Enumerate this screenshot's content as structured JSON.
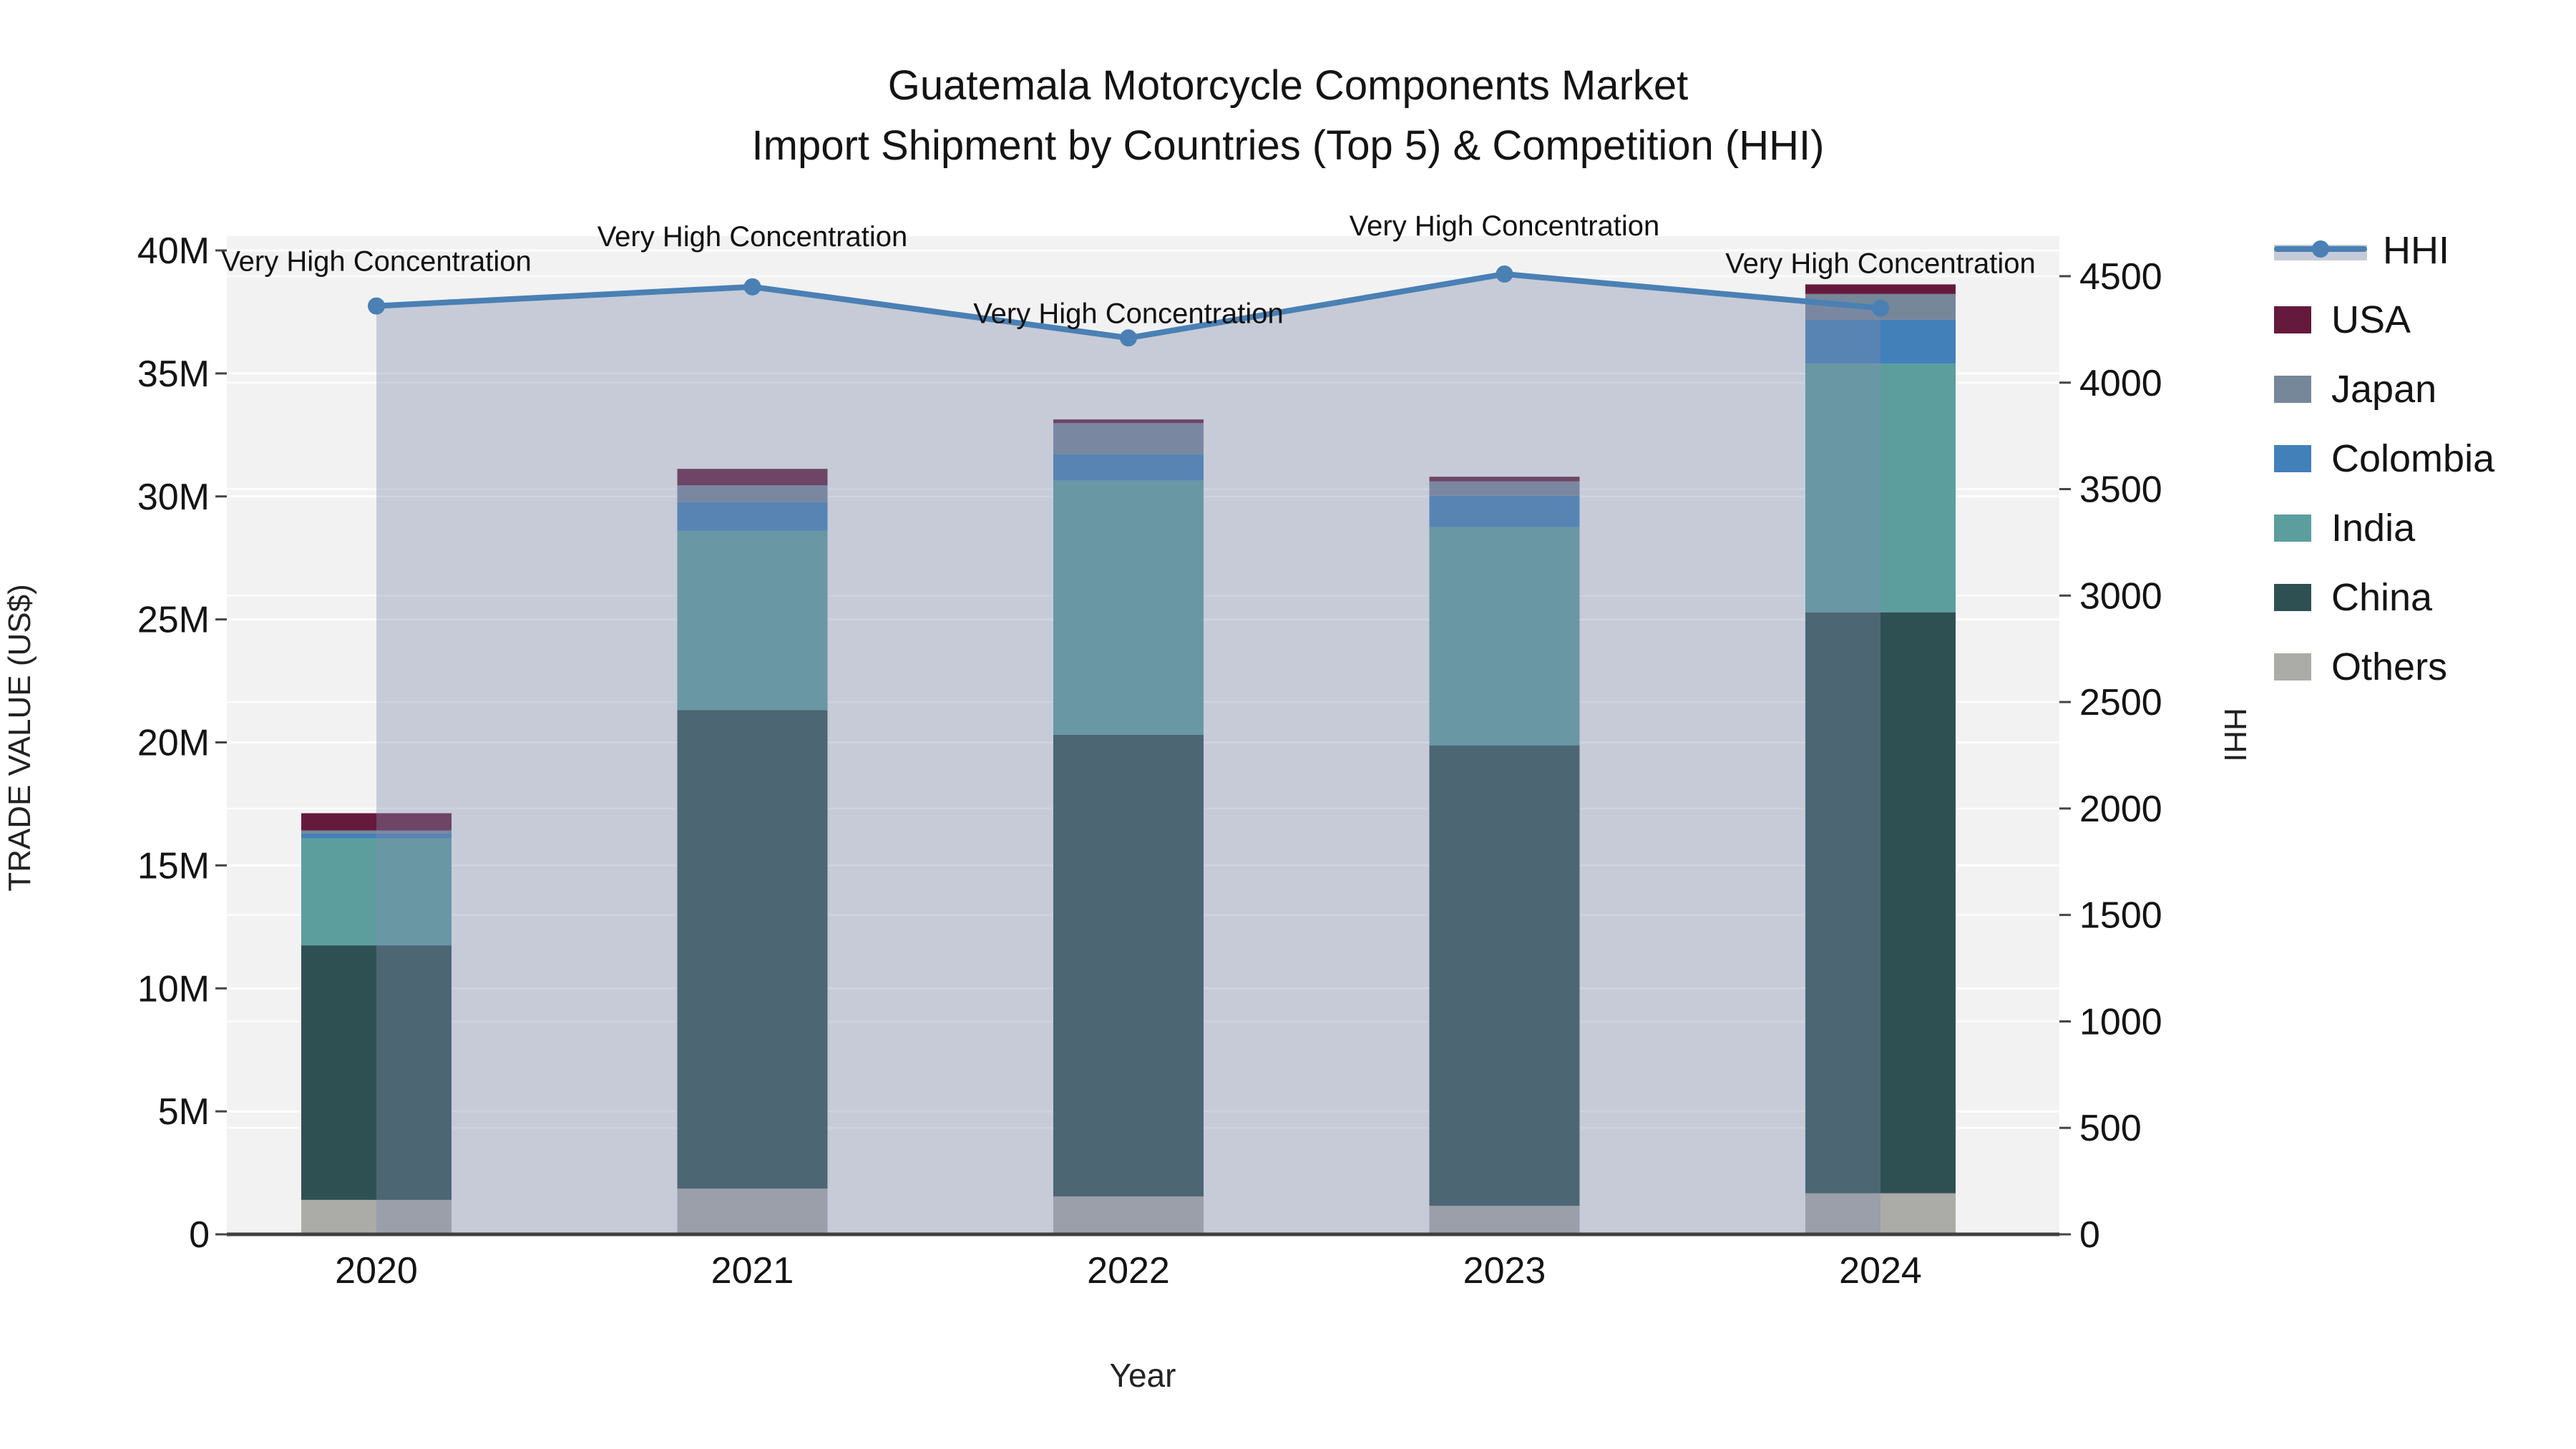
{
  "title": {
    "line1": "Guatemala Motorcycle Components Market",
    "line2": "Import Shipment by Countries (Top 5) & Competition (HHI)"
  },
  "axes": {
    "y_left_title": "TRADE VALUE (US$)",
    "y_right_title": "HHI",
    "x_title": "Year"
  },
  "legend": {
    "items": [
      {
        "label": "HHI",
        "type": "line",
        "color": "#4a80b4"
      },
      {
        "label": "USA",
        "type": "patch",
        "color": "#651a3d"
      },
      {
        "label": "Japan",
        "type": "patch",
        "color": "#76879a"
      },
      {
        "label": "Colombia",
        "type": "patch",
        "color": "#4280ba"
      },
      {
        "label": "India",
        "type": "patch",
        "color": "#5c9e9e"
      },
      {
        "label": "China",
        "type": "patch",
        "color": "#2f5053"
      },
      {
        "label": "Others",
        "type": "patch",
        "color": "#ababa8"
      }
    ]
  },
  "chart_data": {
    "type": "bar",
    "subtype": "stacked-bars-with-line",
    "title": "Guatemala Motorcycle Components Market — Import Shipment by Countries (Top 5) & Competition (HHI)",
    "categories": [
      "2020",
      "2021",
      "2022",
      "2023",
      "2024"
    ],
    "unit": "US$ millions",
    "series": [
      {
        "name": "Others",
        "color": "#ababa8",
        "values": [
          1.4,
          1.86,
          1.54,
          1.16,
          1.67
        ]
      },
      {
        "name": "China",
        "color": "#2f5053",
        "values": [
          10.35,
          19.45,
          18.77,
          18.72,
          23.62
        ]
      },
      {
        "name": "India",
        "color": "#5c9e9e",
        "values": [
          4.35,
          7.3,
          10.34,
          8.87,
          10.11
        ]
      },
      {
        "name": "Colombia",
        "color": "#4280ba",
        "values": [
          0.2,
          1.16,
          1.07,
          1.28,
          1.78
        ]
      },
      {
        "name": "Japan",
        "color": "#76879a",
        "values": [
          0.12,
          0.68,
          1.26,
          0.58,
          1.05
        ]
      },
      {
        "name": "USA",
        "color": "#651a3d",
        "values": [
          0.7,
          0.67,
          0.15,
          0.19,
          0.39
        ]
      }
    ],
    "stack_totals_millions": [
      17.1,
      31.1,
      33.1,
      30.8,
      38.6
    ],
    "line_series": {
      "name": "HHI",
      "axis": "right",
      "color": "#4a80b4",
      "area_fill": "rgba(125,139,170,0.38)",
      "values": [
        4360,
        4450,
        4210,
        4510,
        4350
      ]
    },
    "annotations": [
      {
        "x": "2020",
        "text": "Very High Concentration"
      },
      {
        "x": "2021",
        "text": "Very High Concentration"
      },
      {
        "x": "2022",
        "text": "Very High Concentration"
      },
      {
        "x": "2023",
        "text": "Very High Concentration"
      },
      {
        "x": "2024",
        "text": "Very High Concentration"
      }
    ],
    "xlabel": "Year",
    "ylabel_left": "TRADE VALUE (US$)",
    "ylabel_right": "HHI",
    "y_left": {
      "range_millions": [
        0,
        40
      ],
      "tick_step_millions": 5,
      "tick_labels": [
        "0",
        "5M",
        "10M",
        "15M",
        "20M",
        "25M",
        "30M",
        "35M",
        "40M"
      ]
    },
    "y_right": {
      "range": [
        0,
        4690
      ],
      "tick_step": 500,
      "tick_labels": [
        "0",
        "500",
        "1000",
        "1500",
        "2000",
        "2500",
        "3000",
        "3500",
        "4000",
        "4500"
      ]
    },
    "grid": "horizontal gridlines for both axes, white on light-gray plot background",
    "legend_position": "right-outside",
    "plot_bg": "#f2f2f2",
    "axis_line_color": "#3f3f3f",
    "tick_label_color": "#141414"
  }
}
